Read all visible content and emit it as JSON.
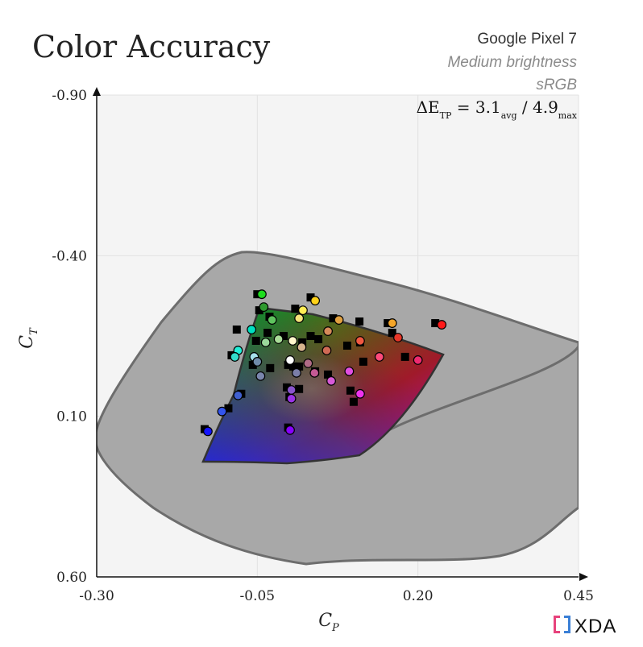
{
  "chart_data": {
    "type": "scatter",
    "title": "Color Accuracy",
    "device": "Google Pixel 7",
    "mode": "Medium brightness",
    "gamut": "sRGB",
    "metric": {
      "prefix": "ΔE",
      "prefix_sub": "TP",
      "avg_value": "3.1",
      "avg_sub": "avg",
      "max_value": "4.9",
      "max_sub": "max"
    },
    "xlabel": "C",
    "xlabel_sub": "P",
    "ylabel": "C",
    "ylabel_sub": "T",
    "xlim": [
      -0.3,
      0.45
    ],
    "ylim": [
      0.6,
      -0.9
    ],
    "x_ticks": [
      -0.3,
      -0.05,
      0.2,
      0.45
    ],
    "x_tick_labels": [
      "-0.30",
      "-0.05",
      "0.20",
      "0.45"
    ],
    "y_ticks": [
      -0.9,
      -0.4,
      0.1,
      0.6
    ],
    "y_tick_labels": [
      "-0.90",
      "-0.40",
      "0.10",
      "0.60"
    ],
    "grid": true,
    "watermark": "XDA",
    "colors": {
      "plot_bg": "#f4f4f4",
      "outer_fill": "#a8a8a8",
      "outer_stroke": "#6d6d6d",
      "inner_stroke": "#333333",
      "axis": "#111111"
    },
    "outer_region": [
      [
        0.045,
        0.025
      ],
      [
        0.01,
        0.135
      ],
      [
        -0.058,
        0.285
      ],
      [
        -0.095,
        0.36
      ],
      [
        -0.15,
        0.4
      ],
      [
        -0.22,
        0.367
      ],
      [
        -0.29,
        0.21
      ],
      [
        -0.3,
        0.11
      ],
      [
        -0.295,
        0.07
      ],
      [
        -0.25,
        0.01
      ],
      [
        -0.205,
        -0.06
      ],
      [
        -0.15,
        -0.17
      ],
      [
        -0.115,
        -0.24
      ],
      [
        -0.095,
        -0.305
      ],
      [
        -0.07,
        -0.385
      ],
      [
        -0.04,
        -0.41
      ],
      [
        0.0,
        -0.395
      ],
      [
        0.05,
        -0.365
      ],
      [
        0.16,
        -0.31
      ],
      [
        0.35,
        -0.26
      ],
      [
        0.45,
        -0.225
      ],
      [
        0.45,
        0.09
      ],
      [
        0.37,
        0.29
      ],
      [
        0.4,
        0.2
      ]
    ],
    "reference_points": [
      {
        "x": -0.05,
        "y": -0.28,
        "color": "#00c000"
      },
      {
        "x": 0.033,
        "y": -0.27,
        "color": "#ffe000"
      },
      {
        "x": 0.153,
        "y": -0.19,
        "color": "#ff8800"
      },
      {
        "x": 0.16,
        "y": -0.16,
        "color": "#ff2222"
      },
      {
        "x": 0.227,
        "y": -0.19,
        "color": "#ff0000"
      },
      {
        "x": 0.115,
        "y": -0.07,
        "color": "#ff4499"
      },
      {
        "x": 0.09,
        "y": -0.12,
        "color": "#e066aa"
      },
      {
        "x": 0.18,
        "y": -0.085,
        "color": "#ff3366"
      },
      {
        "x": 0.095,
        "y": 0.02,
        "color": "#dd00ff"
      },
      {
        "x": 0.1,
        "y": 0.055,
        "color": "#ee33ee"
      },
      {
        "x": 0.045,
        "y": -0.14,
        "color": "#cc4433"
      },
      {
        "x": 0.015,
        "y": -0.055,
        "color": "#aa5577"
      },
      {
        "x": -0.004,
        "y": 0.01,
        "color": "#8844aa"
      },
      {
        "x": 0.0,
        "y": 0.04,
        "color": "#9900ee"
      },
      {
        "x": -0.002,
        "y": 0.135,
        "color": "#8800ff"
      },
      {
        "x": -0.132,
        "y": 0.14,
        "color": "#0000ff"
      },
      {
        "x": -0.095,
        "y": 0.075,
        "color": "#3355ee"
      },
      {
        "x": -0.075,
        "y": 0.03,
        "color": "#3366cc"
      },
      {
        "x": -0.09,
        "y": -0.09,
        "color": "#00eecc"
      },
      {
        "x": -0.082,
        "y": -0.17,
        "color": "#00ddaa"
      },
      {
        "x": -0.047,
        "y": -0.23,
        "color": "#33aa33"
      },
      {
        "x": -0.031,
        "y": -0.21,
        "color": "#88ee88"
      },
      {
        "x": 0.009,
        "y": -0.235,
        "color": "#ffee55"
      },
      {
        "x": 0.068,
        "y": -0.205,
        "color": "#ddaa44"
      },
      {
        "x": 0.109,
        "y": -0.195,
        "color": "#dd8844"
      },
      {
        "x": -0.052,
        "y": -0.135,
        "color": "#99cc99"
      },
      {
        "x": -0.034,
        "y": -0.16,
        "color": "#88cc88"
      },
      {
        "x": -0.009,
        "y": -0.15,
        "color": "#ffffcc"
      },
      {
        "x": 0.02,
        "y": -0.13,
        "color": "#ccaa88"
      },
      {
        "x": 0.033,
        "y": -0.15,
        "color": "#dd9966"
      },
      {
        "x": -0.057,
        "y": -0.06,
        "color": "#aaddee"
      },
      {
        "x": -0.03,
        "y": -0.05,
        "color": "#7788aa"
      },
      {
        "x": 0.006,
        "y": -0.055,
        "color": "#777799"
      },
      {
        "x": -0.002,
        "y": -0.06,
        "color": "#eeeeff"
      },
      {
        "x": 0.04,
        "y": -0.04,
        "color": "#aa6688"
      },
      {
        "x": 0.06,
        "y": -0.03,
        "color": "#cc5577"
      },
      {
        "x": 0.015,
        "y": 0.015,
        "color": "#cc66cc"
      },
      {
        "x": 0.11,
        "y": -0.13,
        "color": "#ee5533"
      }
    ],
    "measured_points": [
      {
        "x": -0.048,
        "y": -0.285,
        "color": "#1fdd1f"
      },
      {
        "x": 0.035,
        "y": -0.265,
        "color": "#ffd21a"
      },
      {
        "x": 0.155,
        "y": -0.195,
        "color": "#f4a62a"
      },
      {
        "x": 0.232,
        "y": -0.19,
        "color": "#ff1a1a"
      },
      {
        "x": 0.164,
        "y": -0.15,
        "color": "#e83628"
      },
      {
        "x": 0.105,
        "y": -0.14,
        "color": "#f05842"
      },
      {
        "x": 0.195,
        "y": -0.08,
        "color": "#ee2a70"
      },
      {
        "x": 0.135,
        "y": -0.09,
        "color": "#ff4a7a"
      },
      {
        "x": 0.105,
        "y": 0.025,
        "color": "#ee33ee"
      },
      {
        "x": 0.088,
        "y": -0.045,
        "color": "#e24fe2"
      },
      {
        "x": 0.06,
        "y": -0.015,
        "color": "#d85ad8"
      },
      {
        "x": 0.053,
        "y": -0.11,
        "color": "#d06a55"
      },
      {
        "x": 0.055,
        "y": -0.17,
        "color": "#d68a5a"
      },
      {
        "x": 0.072,
        "y": -0.205,
        "color": "#e0a040"
      },
      {
        "x": 0.016,
        "y": -0.235,
        "color": "#ffee55"
      },
      {
        "x": 0.01,
        "y": -0.21,
        "color": "#f4e47a"
      },
      {
        "x": -0.045,
        "y": -0.245,
        "color": "#2f9a2f"
      },
      {
        "x": -0.032,
        "y": -0.205,
        "color": "#5fc45f"
      },
      {
        "x": -0.064,
        "y": -0.175,
        "color": "#00e0c0"
      },
      {
        "x": -0.085,
        "y": -0.11,
        "color": "#22eed8"
      },
      {
        "x": -0.042,
        "y": -0.135,
        "color": "#9bd99b"
      },
      {
        "x": -0.022,
        "y": -0.145,
        "color": "#aadd99"
      },
      {
        "x": 0.0,
        "y": -0.14,
        "color": "#fff7cc"
      },
      {
        "x": 0.014,
        "y": -0.12,
        "color": "#d7b58f"
      },
      {
        "x": -0.06,
        "y": -0.09,
        "color": "#a6e0ec"
      },
      {
        "x": -0.055,
        "y": -0.075,
        "color": "#6f8aa8"
      },
      {
        "x": -0.05,
        "y": -0.03,
        "color": "#7a86ad"
      },
      {
        "x": -0.004,
        "y": -0.08,
        "color": "#ffffff"
      },
      {
        "x": 0.006,
        "y": -0.04,
        "color": "#7b7ea8"
      },
      {
        "x": 0.024,
        "y": -0.07,
        "color": "#b06b86"
      },
      {
        "x": 0.034,
        "y": -0.04,
        "color": "#c55a94"
      },
      {
        "x": -0.002,
        "y": 0.013,
        "color": "#8a55cc"
      },
      {
        "x": -0.002,
        "y": 0.04,
        "color": "#9a33e6"
      },
      {
        "x": -0.004,
        "y": 0.138,
        "color": "#8800ff"
      },
      {
        "x": -0.132,
        "y": 0.142,
        "color": "#1414ff"
      },
      {
        "x": -0.11,
        "y": 0.08,
        "color": "#3355ee"
      },
      {
        "x": -0.085,
        "y": 0.03,
        "color": "#4060d0"
      },
      {
        "x": -0.09,
        "y": -0.09,
        "color": "#33ddcc"
      }
    ]
  }
}
